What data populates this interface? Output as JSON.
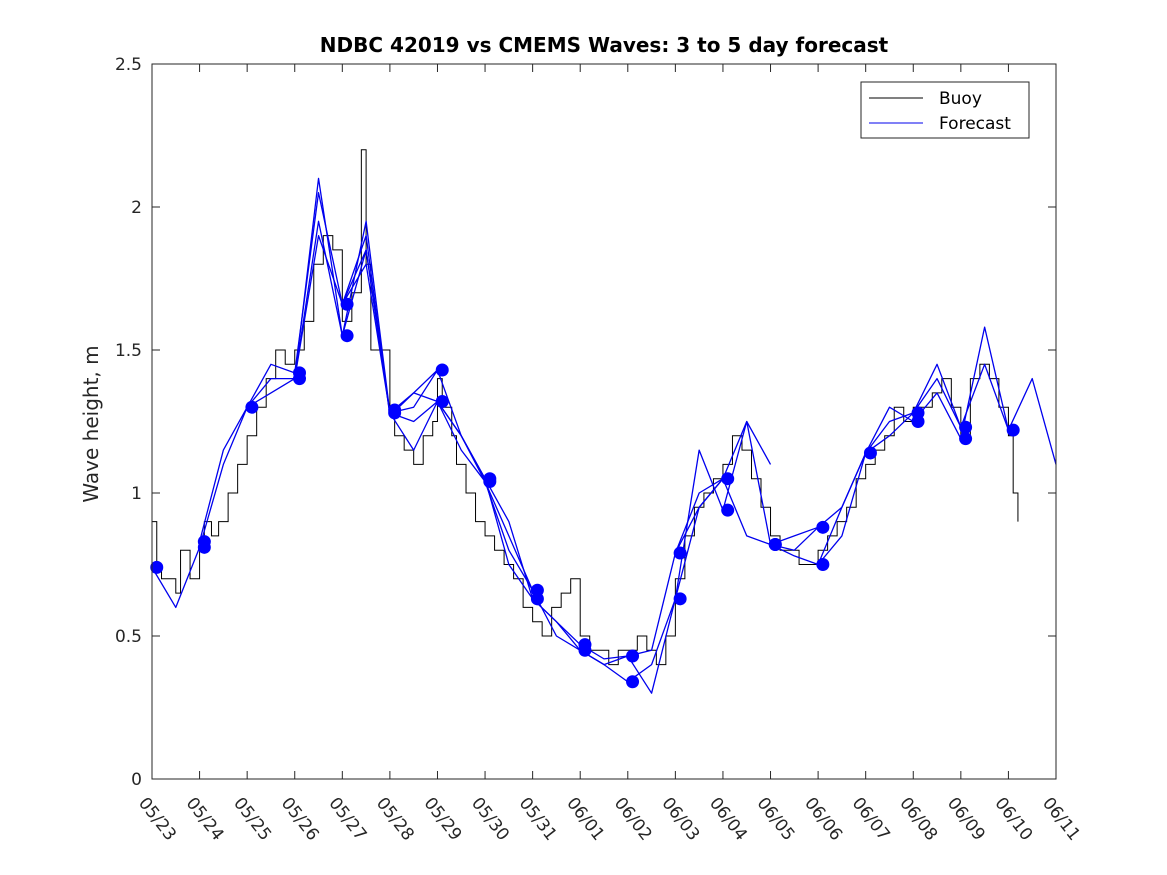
{
  "chart_data": {
    "type": "line",
    "title": "NDBC 42019 vs CMEMS Waves: 3 to 5 day forecast",
    "xlabel": "",
    "ylabel": "Wave height, m",
    "x_axis_kind": "date",
    "xlim": [
      "05/23",
      "06/11"
    ],
    "ylim": [
      0,
      2.5
    ],
    "xticks": [
      "05/23",
      "05/24",
      "05/25",
      "05/26",
      "05/27",
      "05/28",
      "05/29",
      "05/30",
      "05/31",
      "06/01",
      "06/02",
      "06/03",
      "06/04",
      "06/05",
      "06/06",
      "06/07",
      "06/08",
      "06/09",
      "06/10",
      "06/11"
    ],
    "yticks": [
      "0",
      "0.5",
      "1",
      "1.5",
      "2",
      "2.5"
    ],
    "grid": false,
    "legend": {
      "placement": "top-right",
      "entries": [
        "Buoy",
        "Forecast"
      ]
    },
    "colors": {
      "buoy": "#000000",
      "forecast": "#0000ee",
      "marker": "#0000ff"
    },
    "series": [
      {
        "name": "Buoy",
        "note_x": "days after 05/23 00:00",
        "x": [
          0,
          0.1,
          0.2,
          0.4,
          0.5,
          0.6,
          0.8,
          1.0,
          1.1,
          1.25,
          1.4,
          1.6,
          1.8,
          2.0,
          2.2,
          2.4,
          2.6,
          2.8,
          3.0,
          3.2,
          3.4,
          3.6,
          3.8,
          4.0,
          4.2,
          4.4,
          4.5,
          4.6,
          4.8,
          5.0,
          5.1,
          5.3,
          5.5,
          5.7,
          5.9,
          6.0,
          6.1,
          6.3,
          6.4,
          6.6,
          6.8,
          7.0,
          7.2,
          7.4,
          7.6,
          7.8,
          8.0,
          8.2,
          8.4,
          8.6,
          8.8,
          9.0,
          9.2,
          9.4,
          9.6,
          9.8,
          10.0,
          10.2,
          10.4,
          10.6,
          10.8,
          11.0,
          11.2,
          11.4,
          11.6,
          11.8,
          12.0,
          12.2,
          12.4,
          12.6,
          12.8,
          13.0,
          13.2,
          13.4,
          13.6,
          13.8,
          14.0,
          14.2,
          14.4,
          14.6,
          14.8,
          15.0,
          15.2,
          15.4,
          15.6,
          15.8,
          16.0,
          16.2,
          16.4,
          16.6,
          16.8,
          17.0,
          17.2,
          17.4,
          17.6,
          17.8,
          18.0,
          18.1,
          18.2
        ],
        "y": [
          0.9,
          0.75,
          0.7,
          0.7,
          0.65,
          0.8,
          0.7,
          0.8,
          0.9,
          0.85,
          0.9,
          1.0,
          1.1,
          1.2,
          1.3,
          1.4,
          1.5,
          1.45,
          1.5,
          1.6,
          1.8,
          1.9,
          1.85,
          1.6,
          1.7,
          2.2,
          1.8,
          1.5,
          1.5,
          1.3,
          1.2,
          1.15,
          1.1,
          1.2,
          1.25,
          1.4,
          1.3,
          1.2,
          1.1,
          1.0,
          0.9,
          0.85,
          0.8,
          0.75,
          0.7,
          0.6,
          0.55,
          0.5,
          0.6,
          0.65,
          0.7,
          0.5,
          0.45,
          0.45,
          0.4,
          0.45,
          0.45,
          0.5,
          0.45,
          0.4,
          0.5,
          0.7,
          0.85,
          0.95,
          1.0,
          1.05,
          1.1,
          1.2,
          1.15,
          1.05,
          0.95,
          0.85,
          0.8,
          0.8,
          0.75,
          0.75,
          0.8,
          0.85,
          0.9,
          0.95,
          1.05,
          1.1,
          1.15,
          1.2,
          1.3,
          1.25,
          1.3,
          1.3,
          1.35,
          1.4,
          1.3,
          1.2,
          1.4,
          1.45,
          1.4,
          1.3,
          1.2,
          1.0,
          0.9
        ]
      },
      {
        "name": "Forecast",
        "runs": [
          {
            "start": "05/23",
            "x": [
              0,
              0.5,
              1,
              1.5,
              2,
              2.5,
              3,
              3.5,
              4,
              4.5,
              5
            ],
            "y": [
              0.74,
              0.6,
              0.81,
              1.1,
              1.3,
              1.4,
              1.4,
              1.95,
              1.55,
              1.85,
              1.28
            ]
          },
          {
            "start": "05/24",
            "x": [
              1,
              1.5,
              2,
              2.5,
              3,
              3.5,
              4,
              4.5,
              5,
              5.5,
              6
            ],
            "y": [
              0.83,
              1.15,
              1.3,
              1.45,
              1.42,
              2.05,
              1.66,
              1.9,
              1.27,
              1.35,
              1.43
            ]
          },
          {
            "start": "05/25",
            "x": [
              2,
              2.5,
              3,
              3.5,
              4,
              4.5,
              5,
              5.5,
              6,
              6.5,
              7
            ],
            "y": [
              1.3,
              1.35,
              1.4,
              2.1,
              1.55,
              1.95,
              1.28,
              1.15,
              1.32,
              1.2,
              1.05
            ]
          },
          {
            "start": "05/26",
            "x": [
              3,
              3.5,
              4,
              4.5,
              5,
              5.5,
              6,
              6.5,
              7,
              7.5,
              8
            ],
            "y": [
              1.4,
              1.9,
              1.66,
              1.8,
              1.28,
              1.35,
              1.32,
              1.15,
              1.04,
              0.8,
              0.66
            ]
          },
          {
            "start": "05/27",
            "x": [
              4,
              4.5,
              5,
              5.5,
              6,
              6.5,
              7,
              7.5,
              8,
              8.5,
              9
            ],
            "y": [
              1.66,
              1.85,
              1.28,
              1.3,
              1.43,
              1.2,
              1.05,
              0.9,
              0.63,
              0.55,
              0.47
            ]
          },
          {
            "start": "05/28",
            "x": [
              5,
              5.5,
              6,
              6.5,
              7,
              7.5,
              8,
              8.5,
              9,
              9.5,
              10
            ],
            "y": [
              1.28,
              1.25,
              1.32,
              1.2,
              1.04,
              0.85,
              0.66,
              0.5,
              0.45,
              0.4,
              0.34
            ]
          },
          {
            "start": "05/30",
            "x": [
              7,
              7.5,
              8,
              8.5,
              9,
              9.5,
              10,
              10.5,
              11,
              11.5,
              12
            ],
            "y": [
              1.05,
              0.75,
              0.63,
              0.55,
              0.45,
              0.4,
              0.43,
              0.3,
              0.63,
              0.95,
              1.05
            ]
          },
          {
            "start": "06/01",
            "x": [
              9,
              9.5,
              10,
              10.5,
              11,
              11.5,
              12,
              12.5,
              13
            ],
            "y": [
              0.47,
              0.42,
              0.43,
              0.45,
              0.79,
              1.0,
              1.05,
              1.25,
              1.1
            ]
          },
          {
            "start": "06/02",
            "x": [
              10,
              10.5,
              11,
              11.5,
              12,
              12.5,
              13,
              13.5,
              14
            ],
            "y": [
              0.34,
              0.4,
              0.63,
              1.15,
              0.94,
              1.25,
              0.82,
              0.85,
              0.88
            ]
          },
          {
            "start": "06/03",
            "x": [
              11,
              11.5,
              12,
              12.5,
              13,
              13.5,
              14,
              14.5,
              15
            ],
            "y": [
              0.79,
              0.95,
              1.05,
              0.85,
              0.82,
              0.78,
              0.75,
              0.95,
              1.14
            ]
          },
          {
            "start": "06/05",
            "x": [
              13,
              13.5,
              14,
              14.5,
              15,
              15.5,
              16,
              16.5,
              17
            ],
            "y": [
              0.82,
              0.8,
              0.88,
              0.95,
              1.14,
              1.25,
              1.28,
              1.4,
              1.23
            ]
          },
          {
            "start": "06/06",
            "x": [
              14,
              14.5,
              15,
              15.5,
              16,
              16.5,
              17,
              17.5,
              18
            ],
            "y": [
              0.75,
              0.85,
              1.14,
              1.3,
              1.25,
              1.35,
              1.19,
              1.58,
              1.22
            ]
          },
          {
            "start": "06/07",
            "x": [
              15,
              15.5,
              16,
              16.5,
              17,
              17.5,
              18,
              18.5,
              19
            ],
            "y": [
              1.14,
              1.2,
              1.28,
              1.45,
              1.23,
              1.45,
              1.22,
              1.4,
              1.1
            ]
          }
        ]
      }
    ],
    "markers": {
      "x": [
        0.1,
        1.1,
        1.1,
        2.1,
        3.1,
        3.1,
        4.1,
        4.1,
        5.1,
        5.1,
        6.1,
        6.1,
        7.1,
        7.1,
        8.1,
        8.1,
        9.1,
        9.1,
        10.1,
        10.1,
        11.1,
        11.1,
        12.1,
        12.1,
        13.1,
        13.1,
        14.1,
        14.1,
        15.1,
        16.1,
        16.1,
        17.1,
        17.1,
        18.1
      ],
      "y": [
        0.74,
        0.83,
        0.81,
        1.3,
        1.42,
        1.4,
        1.66,
        1.55,
        1.29,
        1.28,
        1.43,
        1.32,
        1.05,
        1.04,
        0.66,
        0.63,
        0.47,
        0.45,
        0.43,
        0.34,
        0.79,
        0.63,
        1.05,
        0.94,
        0.82,
        0.82,
        0.88,
        0.75,
        1.14,
        1.28,
        1.25,
        1.23,
        1.19,
        1.22
      ]
    }
  }
}
